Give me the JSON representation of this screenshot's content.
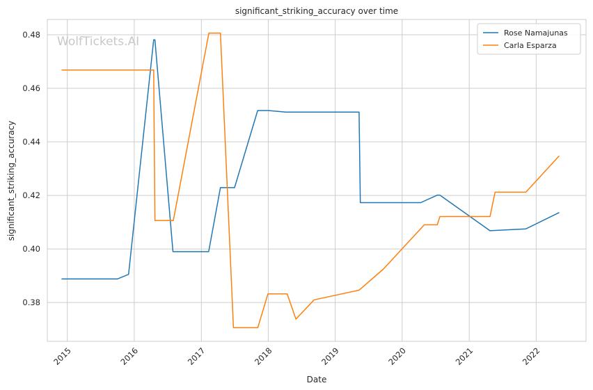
{
  "chart_data": {
    "type": "line",
    "title": "significant_striking_accuracy over time",
    "xlabel": "Date",
    "ylabel": "significant_striking_accuracy",
    "watermark": "WolfTickets.AI",
    "xlim": [
      "2014-09-14",
      "2022-09-30"
    ],
    "ylim": [
      0.3655,
      0.4857
    ],
    "x_ticks": [
      "2015-01-01",
      "2016-01-01",
      "2017-01-01",
      "2018-01-01",
      "2019-01-01",
      "2020-01-01",
      "2021-01-01",
      "2022-01-01"
    ],
    "x_tick_labels": [
      "2015",
      "2016",
      "2017",
      "2018",
      "2019",
      "2020",
      "2021",
      "2022"
    ],
    "y_ticks": [
      0.38,
      0.4,
      0.42,
      0.44,
      0.46,
      0.48
    ],
    "y_tick_labels": [
      "0.38",
      "0.40",
      "0.42",
      "0.44",
      "0.46",
      "0.48"
    ],
    "grid": true,
    "legend_position": "top-right",
    "series": [
      {
        "name": "Rose Namajunas",
        "color": "#1f77b4",
        "points": [
          [
            "2014-12-01",
            0.3888
          ],
          [
            "2015-10-01",
            0.3888
          ],
          [
            "2015-12-01",
            0.3905
          ],
          [
            "2016-04-16",
            0.4781
          ],
          [
            "2016-04-23",
            0.4781
          ],
          [
            "2016-07-30",
            0.399
          ],
          [
            "2017-02-10",
            0.399
          ],
          [
            "2017-04-15",
            0.4229
          ],
          [
            "2017-07-01",
            0.4229
          ],
          [
            "2017-11-04",
            0.4517
          ],
          [
            "2018-01-01",
            0.4517
          ],
          [
            "2018-04-07",
            0.4511
          ],
          [
            "2019-05-11",
            0.4511
          ],
          [
            "2019-05-18",
            0.4173
          ],
          [
            "2020-04-11",
            0.4173
          ],
          [
            "2020-07-11",
            0.4201
          ],
          [
            "2020-07-25",
            0.4201
          ],
          [
            "2021-04-24",
            0.4068
          ],
          [
            "2021-11-06",
            0.4075
          ],
          [
            "2022-05-07",
            0.4136
          ]
        ]
      },
      {
        "name": "Carla Esparza",
        "color": "#ff7f0e",
        "points": [
          [
            "2014-12-01",
            0.4668
          ],
          [
            "2016-04-16",
            0.4668
          ],
          [
            "2016-04-23",
            0.4106
          ],
          [
            "2016-08-01",
            0.4106
          ],
          [
            "2017-02-11",
            0.4806
          ],
          [
            "2017-04-15",
            0.4806
          ],
          [
            "2017-06-25",
            0.3706
          ],
          [
            "2017-11-05",
            0.3706
          ],
          [
            "2017-12-30",
            0.3832
          ],
          [
            "2018-04-14",
            0.3832
          ],
          [
            "2018-06-01",
            0.3738
          ],
          [
            "2018-09-08",
            0.381
          ],
          [
            "2019-05-11",
            0.3846
          ],
          [
            "2019-09-21",
            0.3925
          ],
          [
            "2020-05-01",
            0.409
          ],
          [
            "2020-07-11",
            0.409
          ],
          [
            "2020-07-25",
            0.4121
          ],
          [
            "2021-04-24",
            0.4121
          ],
          [
            "2021-05-22",
            0.4212
          ],
          [
            "2021-11-06",
            0.4212
          ],
          [
            "2022-05-07",
            0.4348
          ]
        ]
      }
    ]
  }
}
